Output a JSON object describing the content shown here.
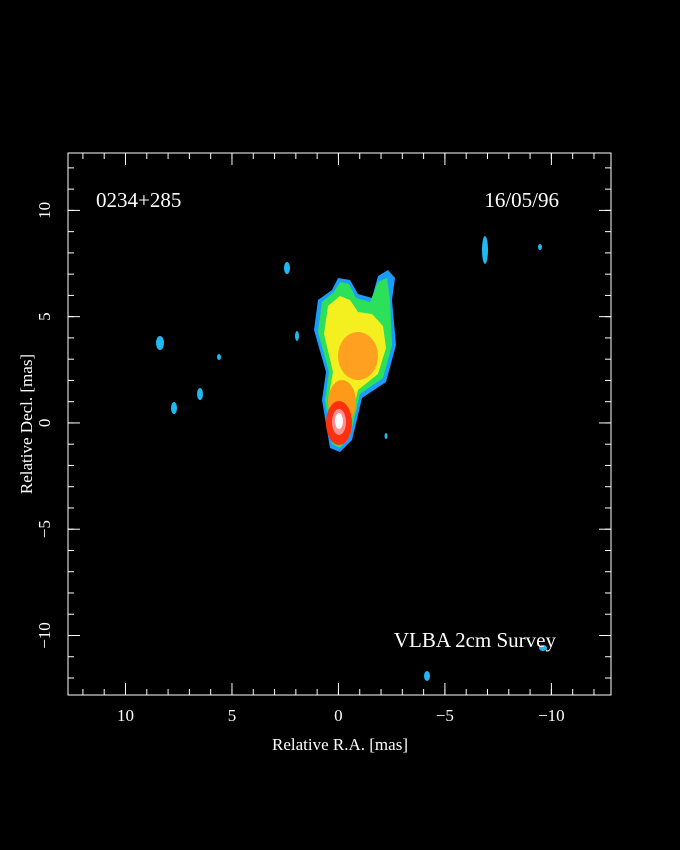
{
  "chart_data": {
    "type": "image",
    "annotations": [
      "0234+285",
      "16/05/96",
      "VLBA 2cm Survey"
    ],
    "x_label": "Relative R.A. [mas]",
    "y_label": "Relative Decl. [mas]",
    "xlim": [
      12.7,
      -12.8
    ],
    "ylim": [
      -12.8,
      12.7
    ],
    "xticks": [
      10,
      5,
      0,
      {
        "value": -5,
        "label": "−5"
      },
      {
        "value": -10,
        "label": "−10"
      }
    ],
    "yticks": [
      {
        "value": -10,
        "label": "−10"
      },
      {
        "value": -5,
        "label": "−5"
      },
      0,
      5,
      10
    ],
    "minor_tick_interval": 1
  }
}
